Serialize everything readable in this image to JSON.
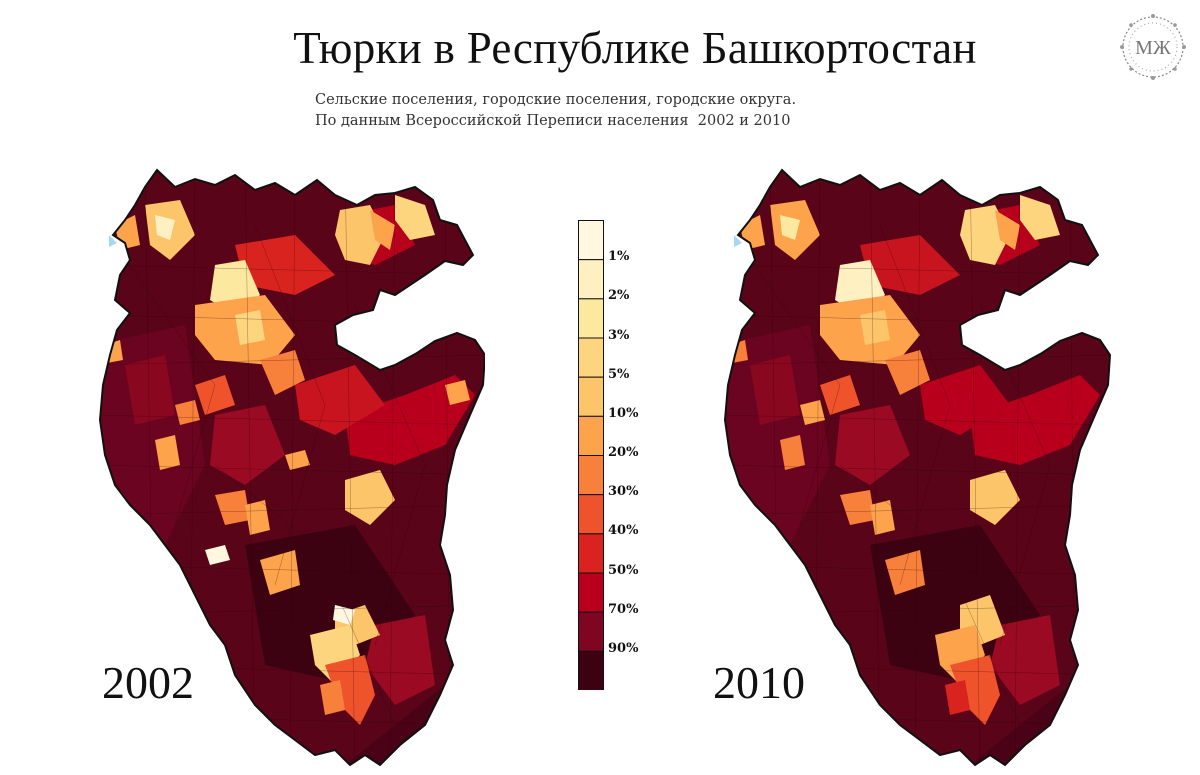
{
  "title": "Тюрки в Республике Башкортостан",
  "subtitle": {
    "line1": "Сельские поселения, городские поселения, городские округа.",
    "line2": "По данным Всероссийской Переписи населения  2002 и 2010"
  },
  "logo": {
    "text": "МЖ",
    "icon": "wreath-monogram-icon"
  },
  "maps": [
    {
      "year": "2002",
      "region": "Республика Башкортостан"
    },
    {
      "year": "2010",
      "region": "Республика Башкортостан"
    }
  ],
  "legend": {
    "bins": [
      {
        "label": "1%",
        "color": "#fff7df"
      },
      {
        "label": "2%",
        "color": "#fff0c2"
      },
      {
        "label": "3%",
        "color": "#fde8a0"
      },
      {
        "label": "5%",
        "color": "#fdd57f"
      },
      {
        "label": "10%",
        "color": "#fdc56a"
      },
      {
        "label": "20%",
        "color": "#fca34c"
      },
      {
        "label": "30%",
        "color": "#f7803a"
      },
      {
        "label": "40%",
        "color": "#ee532c"
      },
      {
        "label": "50%",
        "color": "#d9231e"
      },
      {
        "label": "70%",
        "color": "#b8001d"
      },
      {
        "label": "90%",
        "color": "#7e0623"
      },
      {
        "label": "",
        "color": "#3d0212"
      }
    ]
  },
  "colors": {
    "darkest": "#3d0212",
    "dark": "#6b0420",
    "medium_dark": "#9a0a22",
    "red": "#c8141e",
    "outline": "#111111",
    "water": "#a8d8ef"
  }
}
